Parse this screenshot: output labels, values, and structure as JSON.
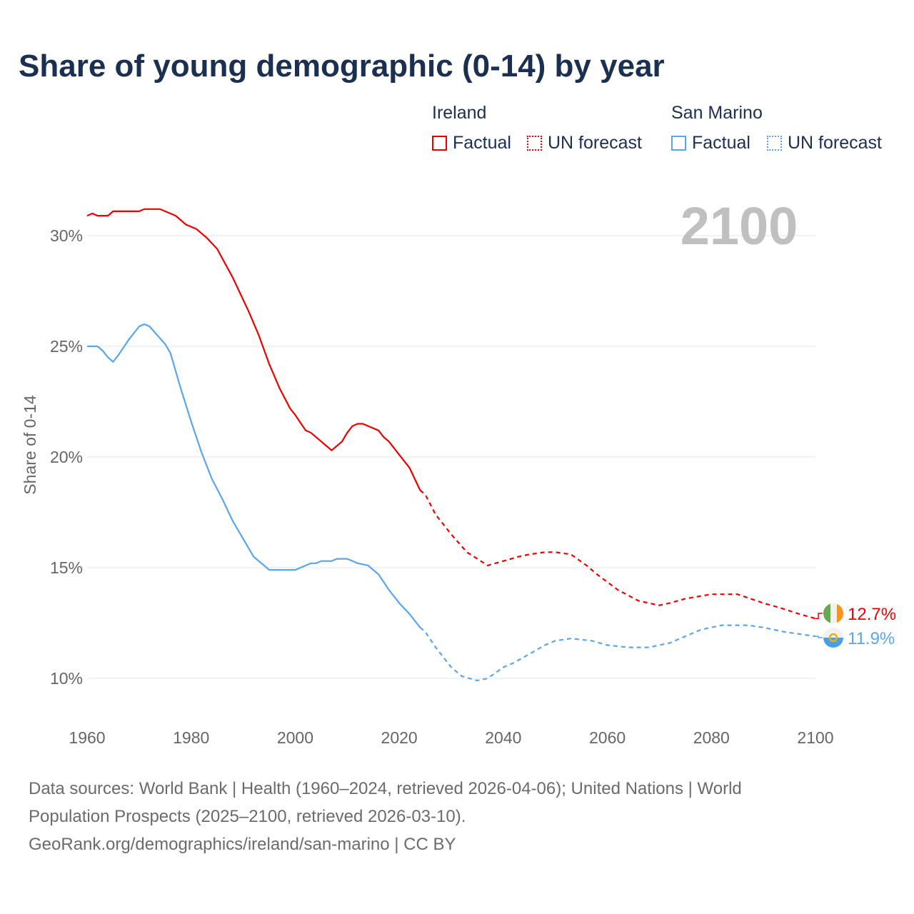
{
  "chart_data": {
    "type": "line",
    "title": "Share of young demographic (0-14) by year",
    "ylabel": "Share of 0-14",
    "xlabel": "",
    "xlim": [
      1960,
      2100
    ],
    "ylim": [
      8.2,
      32
    ],
    "x_ticks": [
      "1960",
      "1980",
      "2000",
      "2020",
      "2040",
      "2060",
      "2080",
      "2100"
    ],
    "y_ticks": [
      {
        "v": 10,
        "label": "10%"
      },
      {
        "v": 15,
        "label": "15%"
      },
      {
        "v": 20,
        "label": "20%"
      },
      {
        "v": 25,
        "label": "25%"
      },
      {
        "v": 30,
        "label": "30%"
      }
    ],
    "grid": true,
    "year_watermark": "2100",
    "legend": {
      "groups": [
        {
          "name": "Ireland",
          "factual": "Factual",
          "forecast": "UN forecast"
        },
        {
          "name": "San Marino",
          "factual": "Factual",
          "forecast": "UN forecast"
        }
      ]
    },
    "series": [
      {
        "name": "Ireland",
        "color": "#ee0000",
        "end_label": "12.7%",
        "flag": "ireland-flag",
        "factual": [
          [
            1960,
            30.9
          ],
          [
            1961,
            31.0
          ],
          [
            1962,
            30.9
          ],
          [
            1964,
            30.9
          ],
          [
            1965,
            31.1
          ],
          [
            1970,
            31.1
          ],
          [
            1971,
            31.2
          ],
          [
            1974,
            31.2
          ],
          [
            1977,
            30.9
          ],
          [
            1979,
            30.5
          ],
          [
            1981,
            30.3
          ],
          [
            1983,
            29.9
          ],
          [
            1985,
            29.4
          ],
          [
            1988,
            28.1
          ],
          [
            1991,
            26.6
          ],
          [
            1993,
            25.5
          ],
          [
            1995,
            24.2
          ],
          [
            1997,
            23.1
          ],
          [
            1999,
            22.2
          ],
          [
            2000,
            21.9
          ],
          [
            2002,
            21.2
          ],
          [
            2003,
            21.1
          ],
          [
            2005,
            20.7
          ],
          [
            2006,
            20.5
          ],
          [
            2007,
            20.3
          ],
          [
            2009,
            20.7
          ],
          [
            2010,
            21.1
          ],
          [
            2011,
            21.4
          ],
          [
            2012,
            21.5
          ],
          [
            2013,
            21.5
          ],
          [
            2016,
            21.2
          ],
          [
            2017,
            20.9
          ],
          [
            2018,
            20.7
          ],
          [
            2020,
            20.1
          ],
          [
            2022,
            19.5
          ],
          [
            2023,
            19.0
          ],
          [
            2024,
            18.5
          ]
        ],
        "forecast": [
          [
            2024,
            18.5
          ],
          [
            2025,
            18.3
          ],
          [
            2027,
            17.4
          ],
          [
            2030,
            16.5
          ],
          [
            2033,
            15.7
          ],
          [
            2035,
            15.4
          ],
          [
            2037,
            15.1
          ],
          [
            2040,
            15.3
          ],
          [
            2043,
            15.5
          ],
          [
            2045,
            15.6
          ],
          [
            2048,
            15.7
          ],
          [
            2050,
            15.7
          ],
          [
            2053,
            15.6
          ],
          [
            2056,
            15.1
          ],
          [
            2058,
            14.7
          ],
          [
            2062,
            14.0
          ],
          [
            2066,
            13.5
          ],
          [
            2070,
            13.3
          ],
          [
            2072,
            13.4
          ],
          [
            2075,
            13.6
          ],
          [
            2080,
            13.8
          ],
          [
            2085,
            13.8
          ],
          [
            2090,
            13.4
          ],
          [
            2093,
            13.2
          ],
          [
            2097,
            12.9
          ],
          [
            2100,
            12.7
          ]
        ]
      },
      {
        "name": "San Marino",
        "color": "#5aa5ec",
        "end_label": "11.9%",
        "flag": "san-marino-flag",
        "factual": [
          [
            1960,
            25.0
          ],
          [
            1962,
            25.0
          ],
          [
            1963,
            24.8
          ],
          [
            1964,
            24.5
          ],
          [
            1965,
            24.3
          ],
          [
            1966,
            24.6
          ],
          [
            1968,
            25.3
          ],
          [
            1970,
            25.9
          ],
          [
            1971,
            26.0
          ],
          [
            1972,
            25.9
          ],
          [
            1975,
            25.1
          ],
          [
            1976,
            24.7
          ],
          [
            1978,
            23.1
          ],
          [
            1980,
            21.6
          ],
          [
            1982,
            20.2
          ],
          [
            1984,
            19.0
          ],
          [
            1986,
            18.1
          ],
          [
            1988,
            17.1
          ],
          [
            1990,
            16.3
          ],
          [
            1992,
            15.5
          ],
          [
            1994,
            15.1
          ],
          [
            1995,
            14.9
          ],
          [
            2000,
            14.9
          ],
          [
            2003,
            15.2
          ],
          [
            2004,
            15.2
          ],
          [
            2005,
            15.3
          ],
          [
            2007,
            15.3
          ],
          [
            2008,
            15.4
          ],
          [
            2010,
            15.4
          ],
          [
            2012,
            15.2
          ],
          [
            2014,
            15.1
          ],
          [
            2016,
            14.7
          ],
          [
            2018,
            14.0
          ],
          [
            2020,
            13.4
          ],
          [
            2022,
            12.9
          ],
          [
            2023,
            12.6
          ],
          [
            2024,
            12.3
          ]
        ],
        "forecast": [
          [
            2024,
            12.3
          ],
          [
            2025,
            12.1
          ],
          [
            2027,
            11.4
          ],
          [
            2030,
            10.5
          ],
          [
            2032,
            10.1
          ],
          [
            2035,
            9.9
          ],
          [
            2037,
            10.0
          ],
          [
            2040,
            10.5
          ],
          [
            2042,
            10.7
          ],
          [
            2045,
            11.1
          ],
          [
            2048,
            11.5
          ],
          [
            2050,
            11.7
          ],
          [
            2053,
            11.8
          ],
          [
            2057,
            11.7
          ],
          [
            2060,
            11.5
          ],
          [
            2064,
            11.4
          ],
          [
            2068,
            11.4
          ],
          [
            2072,
            11.6
          ],
          [
            2078,
            12.2
          ],
          [
            2082,
            12.4
          ],
          [
            2087,
            12.4
          ],
          [
            2090,
            12.3
          ],
          [
            2094,
            12.1
          ],
          [
            2097,
            12.0
          ],
          [
            2100,
            11.9
          ]
        ]
      }
    ]
  },
  "sources": {
    "line1": "Data sources: World Bank | Health (1960–2024, retrieved 2026-04-06); United Nations | World",
    "line2": "Population Prospects (2025–2100, retrieved 2026-03-10).",
    "line3": "GeoRank.org/demographics/ireland/san-marino | CC BY"
  }
}
